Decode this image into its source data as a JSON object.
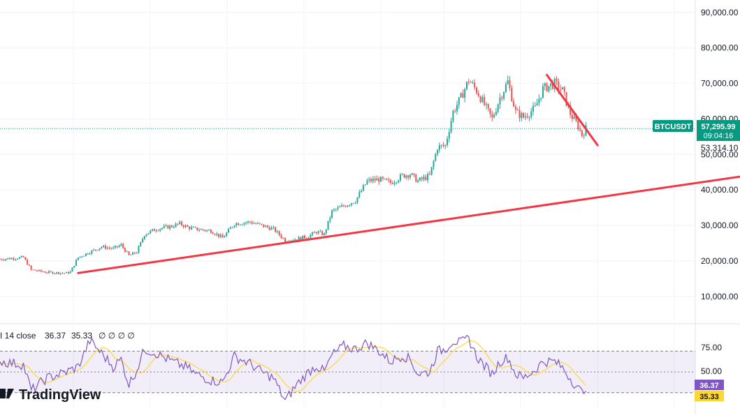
{
  "colors": {
    "up": "#26a69a",
    "down": "#ef5350",
    "trendline": "#f23645",
    "rsi_line": "#7e57c2",
    "rsi_ma": "#fdd835",
    "rsi_band": "#7e57c2",
    "grid": "#f0f3fa",
    "price_line": "#089981",
    "text": "#131722"
  },
  "brand": {
    "name": "TradingView",
    "icon": "tradingview-logo-icon"
  },
  "price_badge": {
    "symbol": "BTCUSDT",
    "price": "57,295.99",
    "countdown": "09:04:16"
  },
  "secondary_price": "53,314.10",
  "indicator": {
    "label_left": "I 14 close",
    "value": "36.37",
    "ma_value": "35.33",
    "extra": "∅ ∅ ∅ ∅",
    "axis_ticks": [
      "75.00",
      "50.00"
    ],
    "badge_rsi": "36.37",
    "badge_ma": "35.33"
  },
  "chart_data": {
    "type": "candlestick",
    "symbol": "BTCUSDT",
    "y_axis": {
      "ticks": [
        "90,000.00",
        "80,000.00",
        "70,000.00",
        "60,000.00",
        "50,000.00",
        "40,000.00",
        "30,000.00",
        "20,000.00",
        "10,000.00"
      ],
      "tick_values": [
        90000,
        80000,
        70000,
        60000,
        50000,
        40000,
        30000,
        20000,
        10000
      ],
      "range": [
        2500,
        93500
      ]
    },
    "x_range": [
      0,
      178
    ],
    "price_series_anchors": [
      [
        0,
        20500
      ],
      [
        6,
        21000
      ],
      [
        8,
        17500
      ],
      [
        12,
        16800
      ],
      [
        17,
        16600
      ],
      [
        18,
        16900
      ],
      [
        20,
        21000
      ],
      [
        23,
        22500
      ],
      [
        26,
        24000
      ],
      [
        29,
        23500
      ],
      [
        31,
        24500
      ],
      [
        33,
        21500
      ],
      [
        35,
        22500
      ],
      [
        37,
        27500
      ],
      [
        40,
        29000
      ],
      [
        44,
        29800
      ],
      [
        46,
        30500
      ],
      [
        48,
        29500
      ],
      [
        50,
        29000
      ],
      [
        54,
        28500
      ],
      [
        57,
        26500
      ],
      [
        60,
        30500
      ],
      [
        64,
        31000
      ],
      [
        67,
        30000
      ],
      [
        70,
        29000
      ],
      [
        73,
        25800
      ],
      [
        76,
        26200
      ],
      [
        79,
        27000
      ],
      [
        81,
        28200
      ],
      [
        83,
        27500
      ],
      [
        85,
        34000
      ],
      [
        88,
        35500
      ],
      [
        91,
        37000
      ],
      [
        94,
        42500
      ],
      [
        97,
        43000
      ],
      [
        100,
        42000
      ],
      [
        103,
        44000
      ],
      [
        105,
        44500
      ],
      [
        107,
        42500
      ],
      [
        110,
        44000
      ],
      [
        112,
        52000
      ],
      [
        114,
        52500
      ],
      [
        116,
        62000
      ],
      [
        118,
        66000
      ],
      [
        120,
        71000
      ],
      [
        122,
        68000
      ],
      [
        124,
        64000
      ],
      [
        126,
        60000
      ],
      [
        128,
        66000
      ],
      [
        130,
        70500
      ],
      [
        132,
        62000
      ],
      [
        134,
        60500
      ],
      [
        137,
        63000
      ],
      [
        139,
        68500
      ],
      [
        142,
        70000
      ],
      [
        144,
        68000
      ],
      [
        146,
        61500
      ],
      [
        148,
        58000
      ],
      [
        149,
        55500
      ],
      [
        150,
        57300
      ]
    ],
    "trendlines": [
      {
        "from": {
          "x": 20,
          "y": 16600
        },
        "to": {
          "x": 196,
          "y": 44800
        }
      },
      {
        "from": {
          "x": 140,
          "y": 72400
        },
        "to": {
          "x": 153,
          "y": 52600
        }
      }
    ],
    "last_price": 57295.99,
    "rsi": {
      "period": 14,
      "source": "close",
      "upper": 70,
      "lower": 30,
      "middle": 50,
      "last": 36.37,
      "ma_last": 35.33,
      "anchors": [
        [
          0,
          60
        ],
        [
          6,
          57
        ],
        [
          8,
          32
        ],
        [
          12,
          44
        ],
        [
          17,
          50
        ],
        [
          20,
          55
        ],
        [
          23,
          80
        ],
        [
          26,
          68
        ],
        [
          29,
          55
        ],
        [
          31,
          62
        ],
        [
          33,
          38
        ],
        [
          35,
          52
        ],
        [
          37,
          72
        ],
        [
          40,
          68
        ],
        [
          44,
          60
        ],
        [
          48,
          54
        ],
        [
          50,
          48
        ],
        [
          54,
          42
        ],
        [
          57,
          40
        ],
        [
          60,
          65
        ],
        [
          64,
          58
        ],
        [
          67,
          50
        ],
        [
          70,
          44
        ],
        [
          73,
          22
        ],
        [
          76,
          38
        ],
        [
          79,
          50
        ],
        [
          81,
          56
        ],
        [
          83,
          50
        ],
        [
          85,
          66
        ],
        [
          88,
          75
        ],
        [
          91,
          72
        ],
        [
          94,
          78
        ],
        [
          97,
          70
        ],
        [
          100,
          60
        ],
        [
          103,
          66
        ],
        [
          105,
          62
        ],
        [
          107,
          48
        ],
        [
          110,
          50
        ],
        [
          112,
          70
        ],
        [
          114,
          72
        ],
        [
          116,
          80
        ],
        [
          118,
          78
        ],
        [
          120,
          82
        ],
        [
          122,
          65
        ],
        [
          124,
          56
        ],
        [
          126,
          48
        ],
        [
          128,
          60
        ],
        [
          130,
          64
        ],
        [
          132,
          48
        ],
        [
          134,
          44
        ],
        [
          137,
          52
        ],
        [
          139,
          60
        ],
        [
          142,
          60
        ],
        [
          144,
          54
        ],
        [
          146,
          44
        ],
        [
          148,
          34
        ],
        [
          149,
          30
        ],
        [
          150,
          36.37
        ]
      ]
    }
  }
}
